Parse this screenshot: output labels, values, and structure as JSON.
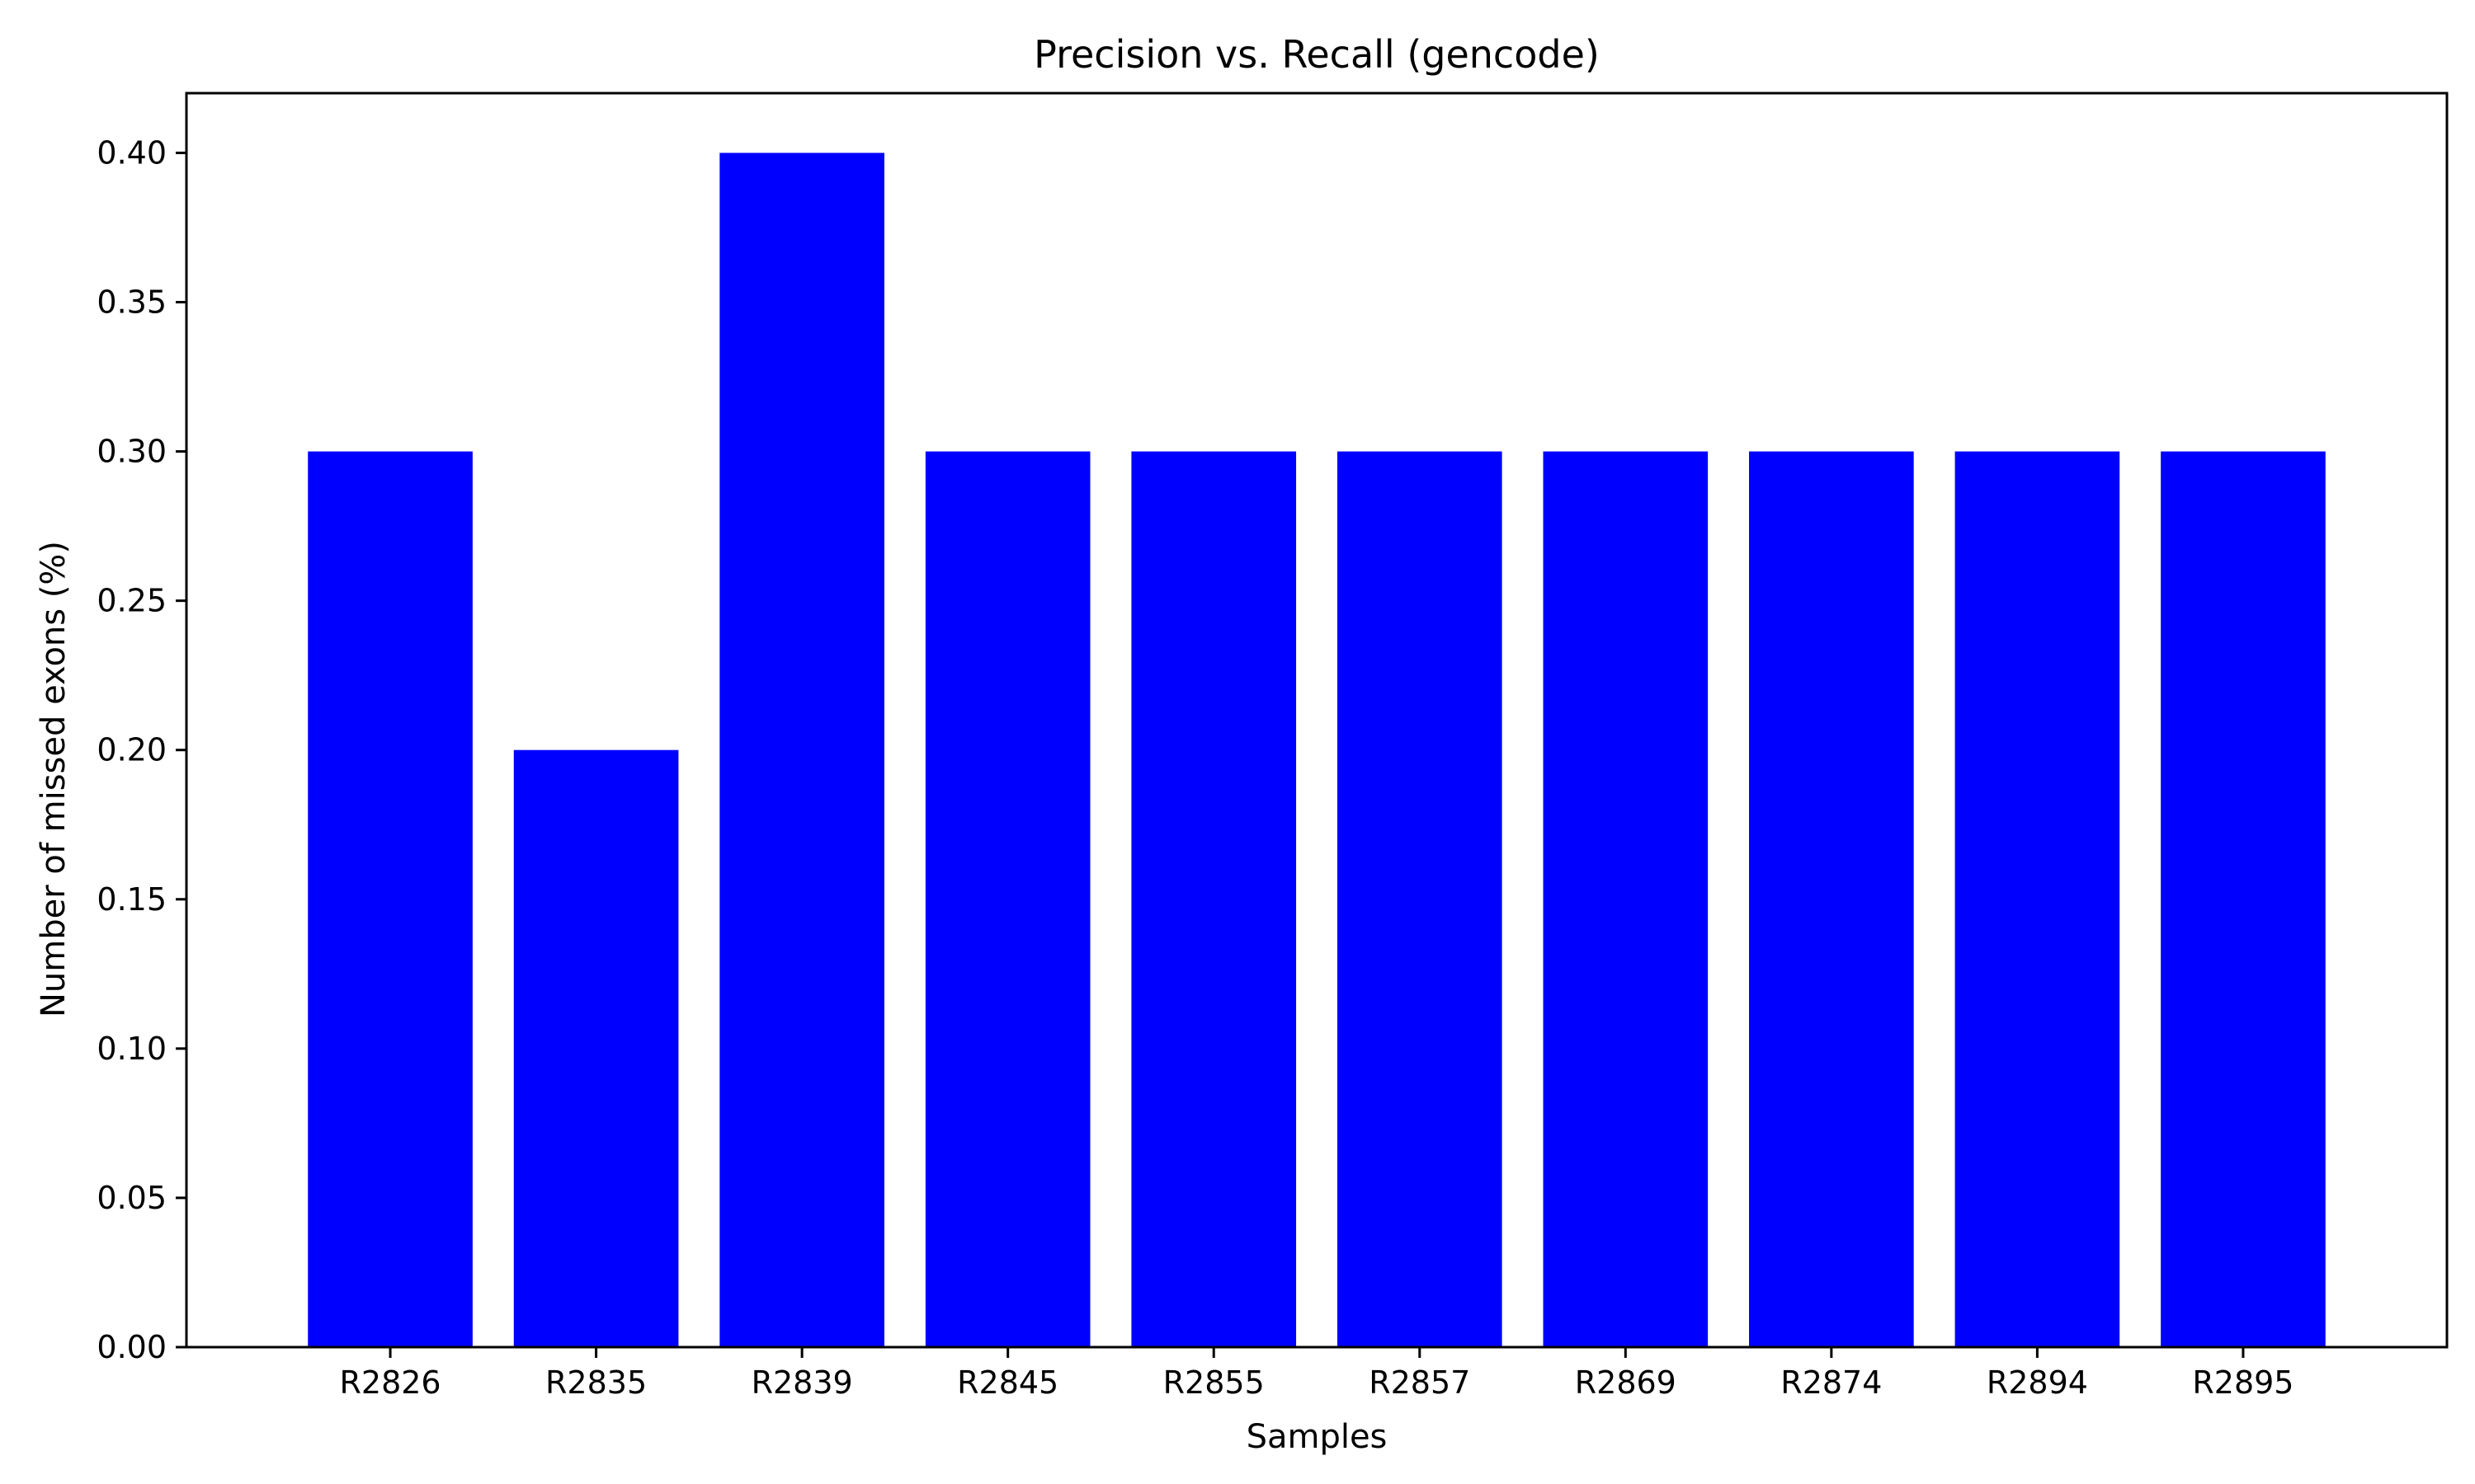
{
  "chart_data": {
    "type": "bar",
    "title": "Precision vs. Recall (gencode)",
    "xlabel": "Samples",
    "ylabel": "Number of missed exons (%)",
    "categories": [
      "R2826",
      "R2835",
      "R2839",
      "R2845",
      "R2855",
      "R2857",
      "R2869",
      "R2874",
      "R2894",
      "R2895"
    ],
    "values": [
      0.3,
      0.2,
      0.4,
      0.3,
      0.3,
      0.3,
      0.3,
      0.3,
      0.3,
      0.3
    ],
    "ylim": [
      0,
      0.42
    ],
    "yticks": [
      "0.00",
      "0.05",
      "0.10",
      "0.15",
      "0.20",
      "0.25",
      "0.30",
      "0.35",
      "0.40"
    ],
    "bar_color": "#0000ff",
    "grid": false,
    "legend": "none"
  }
}
